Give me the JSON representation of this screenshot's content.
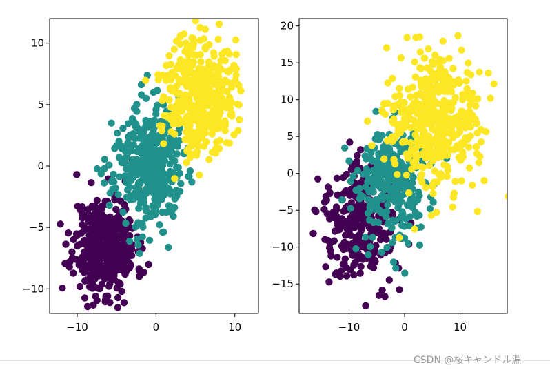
{
  "watermark": "CSDN @桜キャンドル淵",
  "colors": {
    "class0": "#440154",
    "class1": "#21918c",
    "class2": "#fde725",
    "axis": "#000000"
  },
  "chart_data": [
    {
      "type": "scatter",
      "title": "",
      "xlabel": "",
      "ylabel": "",
      "xlim": [
        -13.5,
        13.0
      ],
      "ylim": [
        -12.0,
        12.0
      ],
      "xticks": [
        -10,
        0,
        10
      ],
      "xtick_labels": [
        "−10",
        "0",
        "10"
      ],
      "yticks": [
        -10,
        -5,
        0,
        5,
        10
      ],
      "ytick_labels": [
        "−10",
        "−5",
        "0",
        "5",
        "10"
      ],
      "grid": false,
      "series": [
        {
          "color": "#440154",
          "center": [
            -6.5,
            -6.5
          ],
          "spread": [
            2.0,
            2.0
          ],
          "count": 420,
          "seed": 11
        },
        {
          "color": "#21918c",
          "center": [
            -1.0,
            0.0
          ],
          "spread": [
            2.2,
            2.4
          ],
          "count": 420,
          "seed": 23
        },
        {
          "color": "#fde725",
          "center": [
            5.5,
            6.0
          ],
          "spread": [
            2.2,
            2.4
          ],
          "count": 420,
          "seed": 37
        }
      ]
    },
    {
      "type": "scatter",
      "title": "",
      "xlabel": "",
      "ylabel": "",
      "xlim": [
        -19.0,
        18.5
      ],
      "ylim": [
        -19.0,
        21.0
      ],
      "xticks": [
        -10,
        0,
        10
      ],
      "xtick_labels": [
        "−10",
        "0",
        "10"
      ],
      "yticks": [
        -15,
        -10,
        -5,
        0,
        5,
        10,
        15,
        20
      ],
      "ytick_labels": [
        "−15",
        "−10",
        "−5",
        "0",
        "5",
        "10",
        "15",
        "20"
      ],
      "grid": false,
      "series": [
        {
          "color": "#440154",
          "center": [
            -8.0,
            -6.5
          ],
          "spread": [
            3.5,
            4.0
          ],
          "count": 300,
          "seed": 41
        },
        {
          "color": "#21918c",
          "center": [
            -2.0,
            -1.5
          ],
          "spread": [
            3.5,
            4.0
          ],
          "count": 300,
          "seed": 53
        },
        {
          "color": "#fde725",
          "center": [
            5.0,
            6.5
          ],
          "spread": [
            4.0,
            4.5
          ],
          "count": 420,
          "seed": 67
        }
      ]
    }
  ]
}
